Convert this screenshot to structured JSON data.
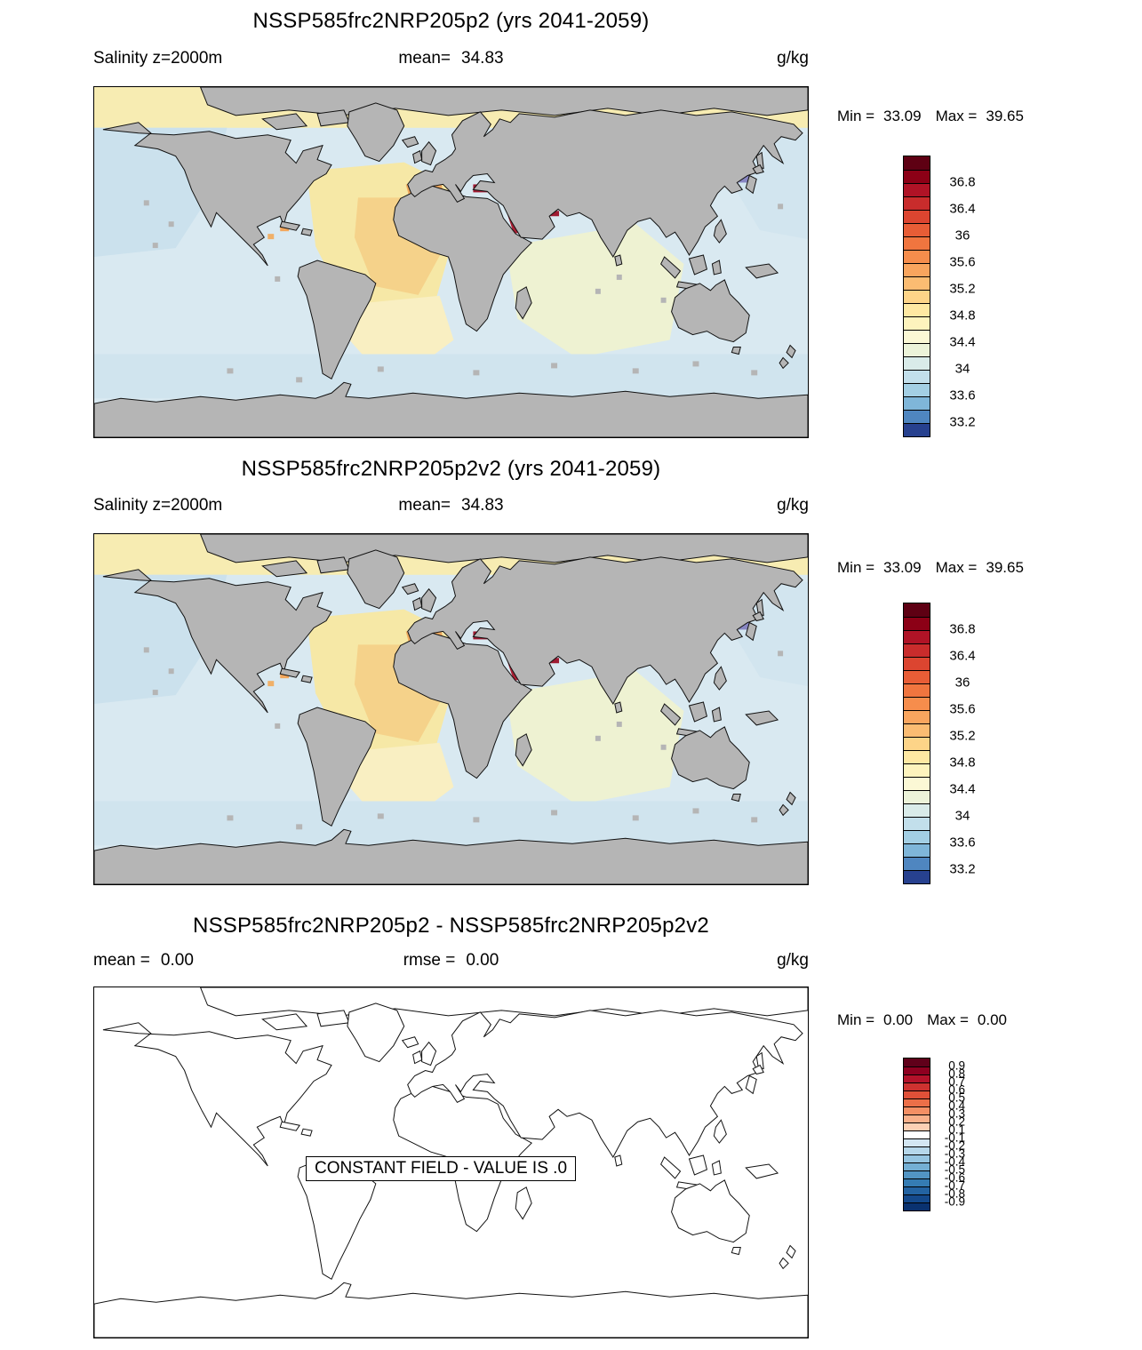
{
  "panels": [
    {
      "title": "NSSP585frc2NRP205p2 (yrs 2041-2059)",
      "field_label": "Salinity z=2000m",
      "mean_label": "mean=",
      "mean_value": "34.83",
      "units": "g/kg",
      "min_label": "Min =",
      "min_value": "33.09",
      "max_label": "Max =",
      "max_value": "39.65",
      "colorbar": {
        "tick_labels": [
          "36.8",
          "36.4",
          "36",
          "35.6",
          "35.2",
          "34.8",
          "34.4",
          "34",
          "33.6",
          "33.2"
        ],
        "cell_colors": [
          "#5e0013",
          "#8c0016",
          "#b01326",
          "#c92c2c",
          "#dc4530",
          "#e85d36",
          "#f0753f",
          "#f68d4c",
          "#f9a55e",
          "#fbbc72",
          "#fdd488",
          "#fee8a2",
          "#fdf3bd",
          "#fbf8d5",
          "#ecf3d9",
          "#d9ebe9",
          "#c2dfeb",
          "#a3cfe4",
          "#7fb6d9",
          "#4f86c0",
          "#27418f"
        ]
      }
    },
    {
      "title": "NSSP585frc2NRP205p2v2 (yrs 2041-2059)",
      "field_label": "Salinity z=2000m",
      "mean_label": "mean=",
      "mean_value": "34.83",
      "units": "g/kg",
      "min_label": "Min =",
      "min_value": "33.09",
      "max_label": "Max =",
      "max_value": "39.65",
      "colorbar": {
        "tick_labels": [
          "36.8",
          "36.4",
          "36",
          "35.6",
          "35.2",
          "34.8",
          "34.4",
          "34",
          "33.6",
          "33.2"
        ],
        "cell_colors": [
          "#5e0013",
          "#8c0016",
          "#b01326",
          "#c92c2c",
          "#dc4530",
          "#e85d36",
          "#f0753f",
          "#f68d4c",
          "#f9a55e",
          "#fbbc72",
          "#fdd488",
          "#fee8a2",
          "#fdf3bd",
          "#fbf8d5",
          "#ecf3d9",
          "#d9ebe9",
          "#c2dfeb",
          "#a3cfe4",
          "#7fb6d9",
          "#4f86c0",
          "#27418f"
        ]
      }
    },
    {
      "title": "NSSP585frc2NRP205p2 - NSSP585frc2NRP205p2v2",
      "mean_label": "mean =",
      "mean_value": "0.00",
      "rmse_label": "rmse =",
      "rmse_value": "0.00",
      "units": "g/kg",
      "min_label": "Min =",
      "min_value": "0.00",
      "max_label": "Max =",
      "max_value": "0.00",
      "map_annotation": "CONSTANT FIELD - VALUE IS .0",
      "colorbar": {
        "tick_labels": [
          "0.9",
          "0.8",
          "0.7",
          "0.6",
          "0.5",
          "0.4",
          "0.3",
          "0.2",
          "0.1",
          "-0.1",
          "-0.2",
          "-0.3",
          "-0.4",
          "-0.5",
          "-0.6",
          "-0.7",
          "-0.8",
          "-0.9"
        ],
        "cell_colors": [
          "#60001a",
          "#8e0020",
          "#b4122a",
          "#ce3230",
          "#e05038",
          "#ec6f48",
          "#f48f64",
          "#f9b08a",
          "#fcd0b4",
          "#ffffff",
          "#d3e6f2",
          "#b6d7ea",
          "#96c5e1",
          "#74afd4",
          "#5295c4",
          "#357cb3",
          "#2363a2",
          "#14498c",
          "#0a3270"
        ]
      }
    }
  ],
  "chart_data": [
    {
      "type": "heatmap",
      "title": "NSSP585frc2NRP205p2 (yrs 2041-2059)",
      "variable": "Salinity z=2000m",
      "units": "g/kg",
      "mean": 34.83,
      "min": 33.09,
      "max": 39.65,
      "colorbar_ticks": [
        36.8,
        36.4,
        36,
        35.6,
        35.2,
        34.8,
        34.4,
        34,
        33.6,
        33.2
      ],
      "legend_position": "right",
      "notes": "Global ocean salinity map at 2000 m depth; gray = land/no data; warm colors in North Atlantic and Mediterranean, cool colors in Pacific and Southern Ocean"
    },
    {
      "type": "heatmap",
      "title": "NSSP585frc2NRP205p2v2 (yrs 2041-2059)",
      "variable": "Salinity z=2000m",
      "units": "g/kg",
      "mean": 34.83,
      "min": 33.09,
      "max": 39.65,
      "colorbar_ticks": [
        36.8,
        36.4,
        36,
        35.6,
        35.2,
        34.8,
        34.4,
        34,
        33.6,
        33.2
      ],
      "legend_position": "right",
      "notes": "Identical field to panel 1"
    },
    {
      "type": "heatmap",
      "title": "NSSP585frc2NRP205p2 - NSSP585frc2NRP205p2v2",
      "units": "g/kg",
      "mean": 0.0,
      "rmse": 0.0,
      "min": 0.0,
      "max": 0.0,
      "annotation": "CONSTANT FIELD - VALUE IS .0",
      "colorbar_ticks": [
        0.9,
        0.8,
        0.7,
        0.6,
        0.5,
        0.4,
        0.3,
        0.2,
        0.1,
        -0.1,
        -0.2,
        -0.3,
        -0.4,
        -0.5,
        -0.6,
        -0.7,
        -0.8,
        -0.9
      ],
      "legend_position": "right",
      "notes": "Difference map: constant zero field, coastline outlines only"
    }
  ]
}
